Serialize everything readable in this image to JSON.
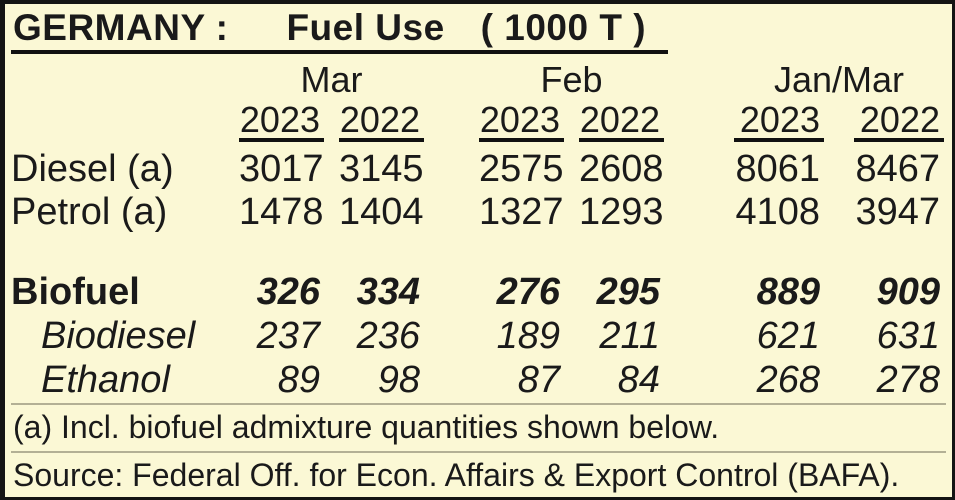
{
  "title": {
    "region": "GERMANY",
    "separator": ":",
    "subject": "Fuel  Use",
    "unit": "( 1000 T )"
  },
  "table": {
    "months": [
      "Mar",
      "Feb",
      "Jan/Mar"
    ],
    "years": [
      "2023",
      "2022",
      "2023",
      "2022",
      "2023",
      "2022"
    ],
    "rows": [
      {
        "label": "Diesel (a)",
        "values": [
          "3017",
          "3145",
          "2575",
          "2608",
          "8061",
          "8467"
        ]
      },
      {
        "label": "Petrol (a)",
        "values": [
          "1478",
          "1404",
          "1327",
          "1293",
          "4108",
          "3947"
        ]
      },
      {
        "label": "Biofuel",
        "values": [
          "326",
          "334",
          "276",
          "295",
          "889",
          "909"
        ]
      },
      {
        "label": "Biodiesel",
        "values": [
          "237",
          "236",
          "189",
          "211",
          "621",
          "631"
        ]
      },
      {
        "label": "Ethanol",
        "values": [
          "89",
          "98",
          "87",
          "84",
          "268",
          "278"
        ]
      }
    ]
  },
  "notes": {
    "footnote": "(a) Incl. biofuel admixture quantities shown below.",
    "source": "Source: Federal Off. for Econ. Affairs & Export Control (BAFA)."
  },
  "colors": {
    "background": "#fbf8d5",
    "text": "#1a1a1a",
    "border": "#141414"
  }
}
